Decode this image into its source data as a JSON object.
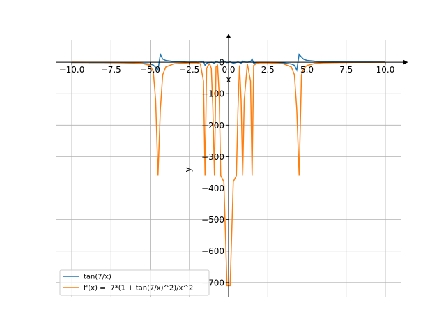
{
  "chart_data": {
    "type": "line",
    "x_label": "x",
    "y_label": "y",
    "x": [
      -10,
      -9,
      -8,
      -7,
      -6,
      -5.5,
      -5,
      -4.8,
      -4.65,
      -4.5,
      -4.35,
      -4.2,
      -4,
      -3.5,
      -3,
      -2.5,
      -2,
      -1.8,
      -1.6,
      -1.5,
      -1.4,
      -1.3,
      -1.2,
      -1.1,
      -1.0,
      -0.9,
      -0.8,
      -0.7,
      -0.6,
      -0.5,
      -0.3,
      -0.1,
      0.1,
      0.3,
      0.5,
      0.6,
      0.7,
      0.8,
      0.9,
      1.0,
      1.2,
      1.4,
      1.5,
      1.6,
      1.8,
      2,
      2.5,
      3,
      3.5,
      4,
      4.2,
      4.35,
      4.5,
      4.65,
      4.8,
      5,
      5.5,
      6,
      7,
      8,
      9,
      10
    ],
    "series": [
      {
        "name": "tan(7/x)",
        "color": "#1f77b4",
        "values": [
          -0.84,
          -0.98,
          -1.2,
          -1.56,
          -2.4,
          -3.3,
          -5.8,
          -9,
          -16,
          -25,
          25,
          10,
          5.5,
          2.2,
          1.1,
          0.4,
          0.4,
          0.8,
          3,
          -10,
          -3.4,
          -1.6,
          -0.5,
          0,
          -0.9,
          -4,
          3,
          0.6,
          -1,
          0.5,
          3,
          -1,
          1,
          -3,
          -0.5,
          1,
          -0.6,
          -3,
          4,
          0.9,
          0,
          1.6,
          10,
          -3,
          -0.8,
          -0.4,
          -0.4,
          -1.1,
          -2.2,
          -5.5,
          -10,
          -25,
          25,
          16,
          9,
          5.8,
          3.3,
          2.4,
          1.56,
          1.2,
          0.98,
          0.84
        ]
      },
      {
        "name": "f'(x) = -7*(1 + tan(7/x)^2)/x^2",
        "color": "#ff7f0e",
        "values": [
          -0.1,
          -0.2,
          -0.4,
          -1,
          -2,
          -4,
          -10,
          -30,
          -120,
          -360,
          -150,
          -40,
          -15,
          -5,
          -3,
          -2,
          -2,
          -5,
          -60,
          -360,
          -20,
          -10,
          -5,
          -20,
          -150,
          -360,
          -15,
          -10,
          -100,
          -360,
          -380,
          -710,
          -710,
          -380,
          -360,
          -150,
          -10,
          -120,
          -360,
          -120,
          -5,
          -60,
          -360,
          -10,
          -3,
          -2,
          -2,
          -3,
          -5,
          -15,
          -40,
          -150,
          -360,
          -40,
          -20,
          -10,
          -4,
          -2,
          -1,
          -0.4,
          -0.2,
          -0.1
        ]
      }
    ],
    "xlim": [
      -11,
      11
    ],
    "ylim": [
      -747,
      69
    ],
    "xticks": [
      {
        "value": -10,
        "label": "−10.0"
      },
      {
        "value": -7.5,
        "label": "−7.5"
      },
      {
        "value": -5,
        "label": "−5.0"
      },
      {
        "value": -2.5,
        "label": "−2.5"
      },
      {
        "value": 0,
        "label": "0.0"
      },
      2.5,
      {
        "value": 5,
        "label": "5.0"
      },
      7.5,
      {
        "value": 10,
        "label": "10.0"
      }
    ],
    "yticks": [
      {
        "value": -700,
        "label": "−700"
      },
      {
        "value": -600,
        "label": "−600"
      },
      {
        "value": -500,
        "label": "−500"
      },
      {
        "value": -400,
        "label": "−400"
      },
      {
        "value": -300,
        "label": "−300"
      },
      {
        "value": -200,
        "label": "−200"
      },
      {
        "value": -100,
        "label": "−100"
      },
      0
    ],
    "grid": true,
    "legend": "lower left"
  }
}
